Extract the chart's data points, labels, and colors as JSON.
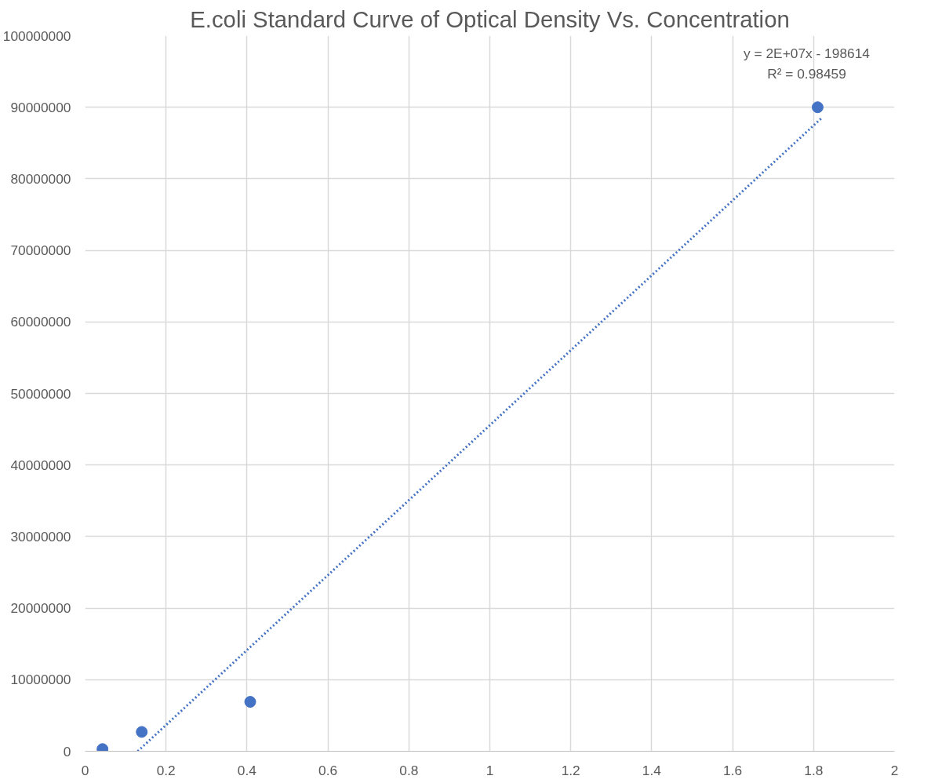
{
  "chart_data": {
    "type": "scatter",
    "title": "E.coli Standard Curve of Optical Density Vs. Concentration",
    "series": [
      {
        "color": "#4472c4",
        "marker": "circle",
        "x": [
          0.043,
          0.14,
          0.408,
          1.81
        ],
        "values": [
          300000,
          2700000,
          6900000,
          90000000
        ]
      },
      {
        "type": "line",
        "color": "#4472c4",
        "line_style": "dotted",
        "x": [
          0.13,
          1.82
        ],
        "values": [
          0,
          88500000
        ]
      }
    ],
    "annotations": [
      "y = 2E+07x - 198614",
      "R² = 0.98459"
    ],
    "xlim": [
      0,
      2
    ],
    "xticks": [
      0,
      0.2,
      0.4,
      0.6,
      0.8,
      1,
      1.2,
      1.4,
      1.6,
      1.8,
      2
    ],
    "ylim": [
      0,
      100000000
    ],
    "yticks": [
      0,
      10000000,
      20000000,
      30000000,
      40000000,
      50000000,
      60000000,
      70000000,
      80000000,
      90000000,
      100000000
    ],
    "grid": true
  }
}
